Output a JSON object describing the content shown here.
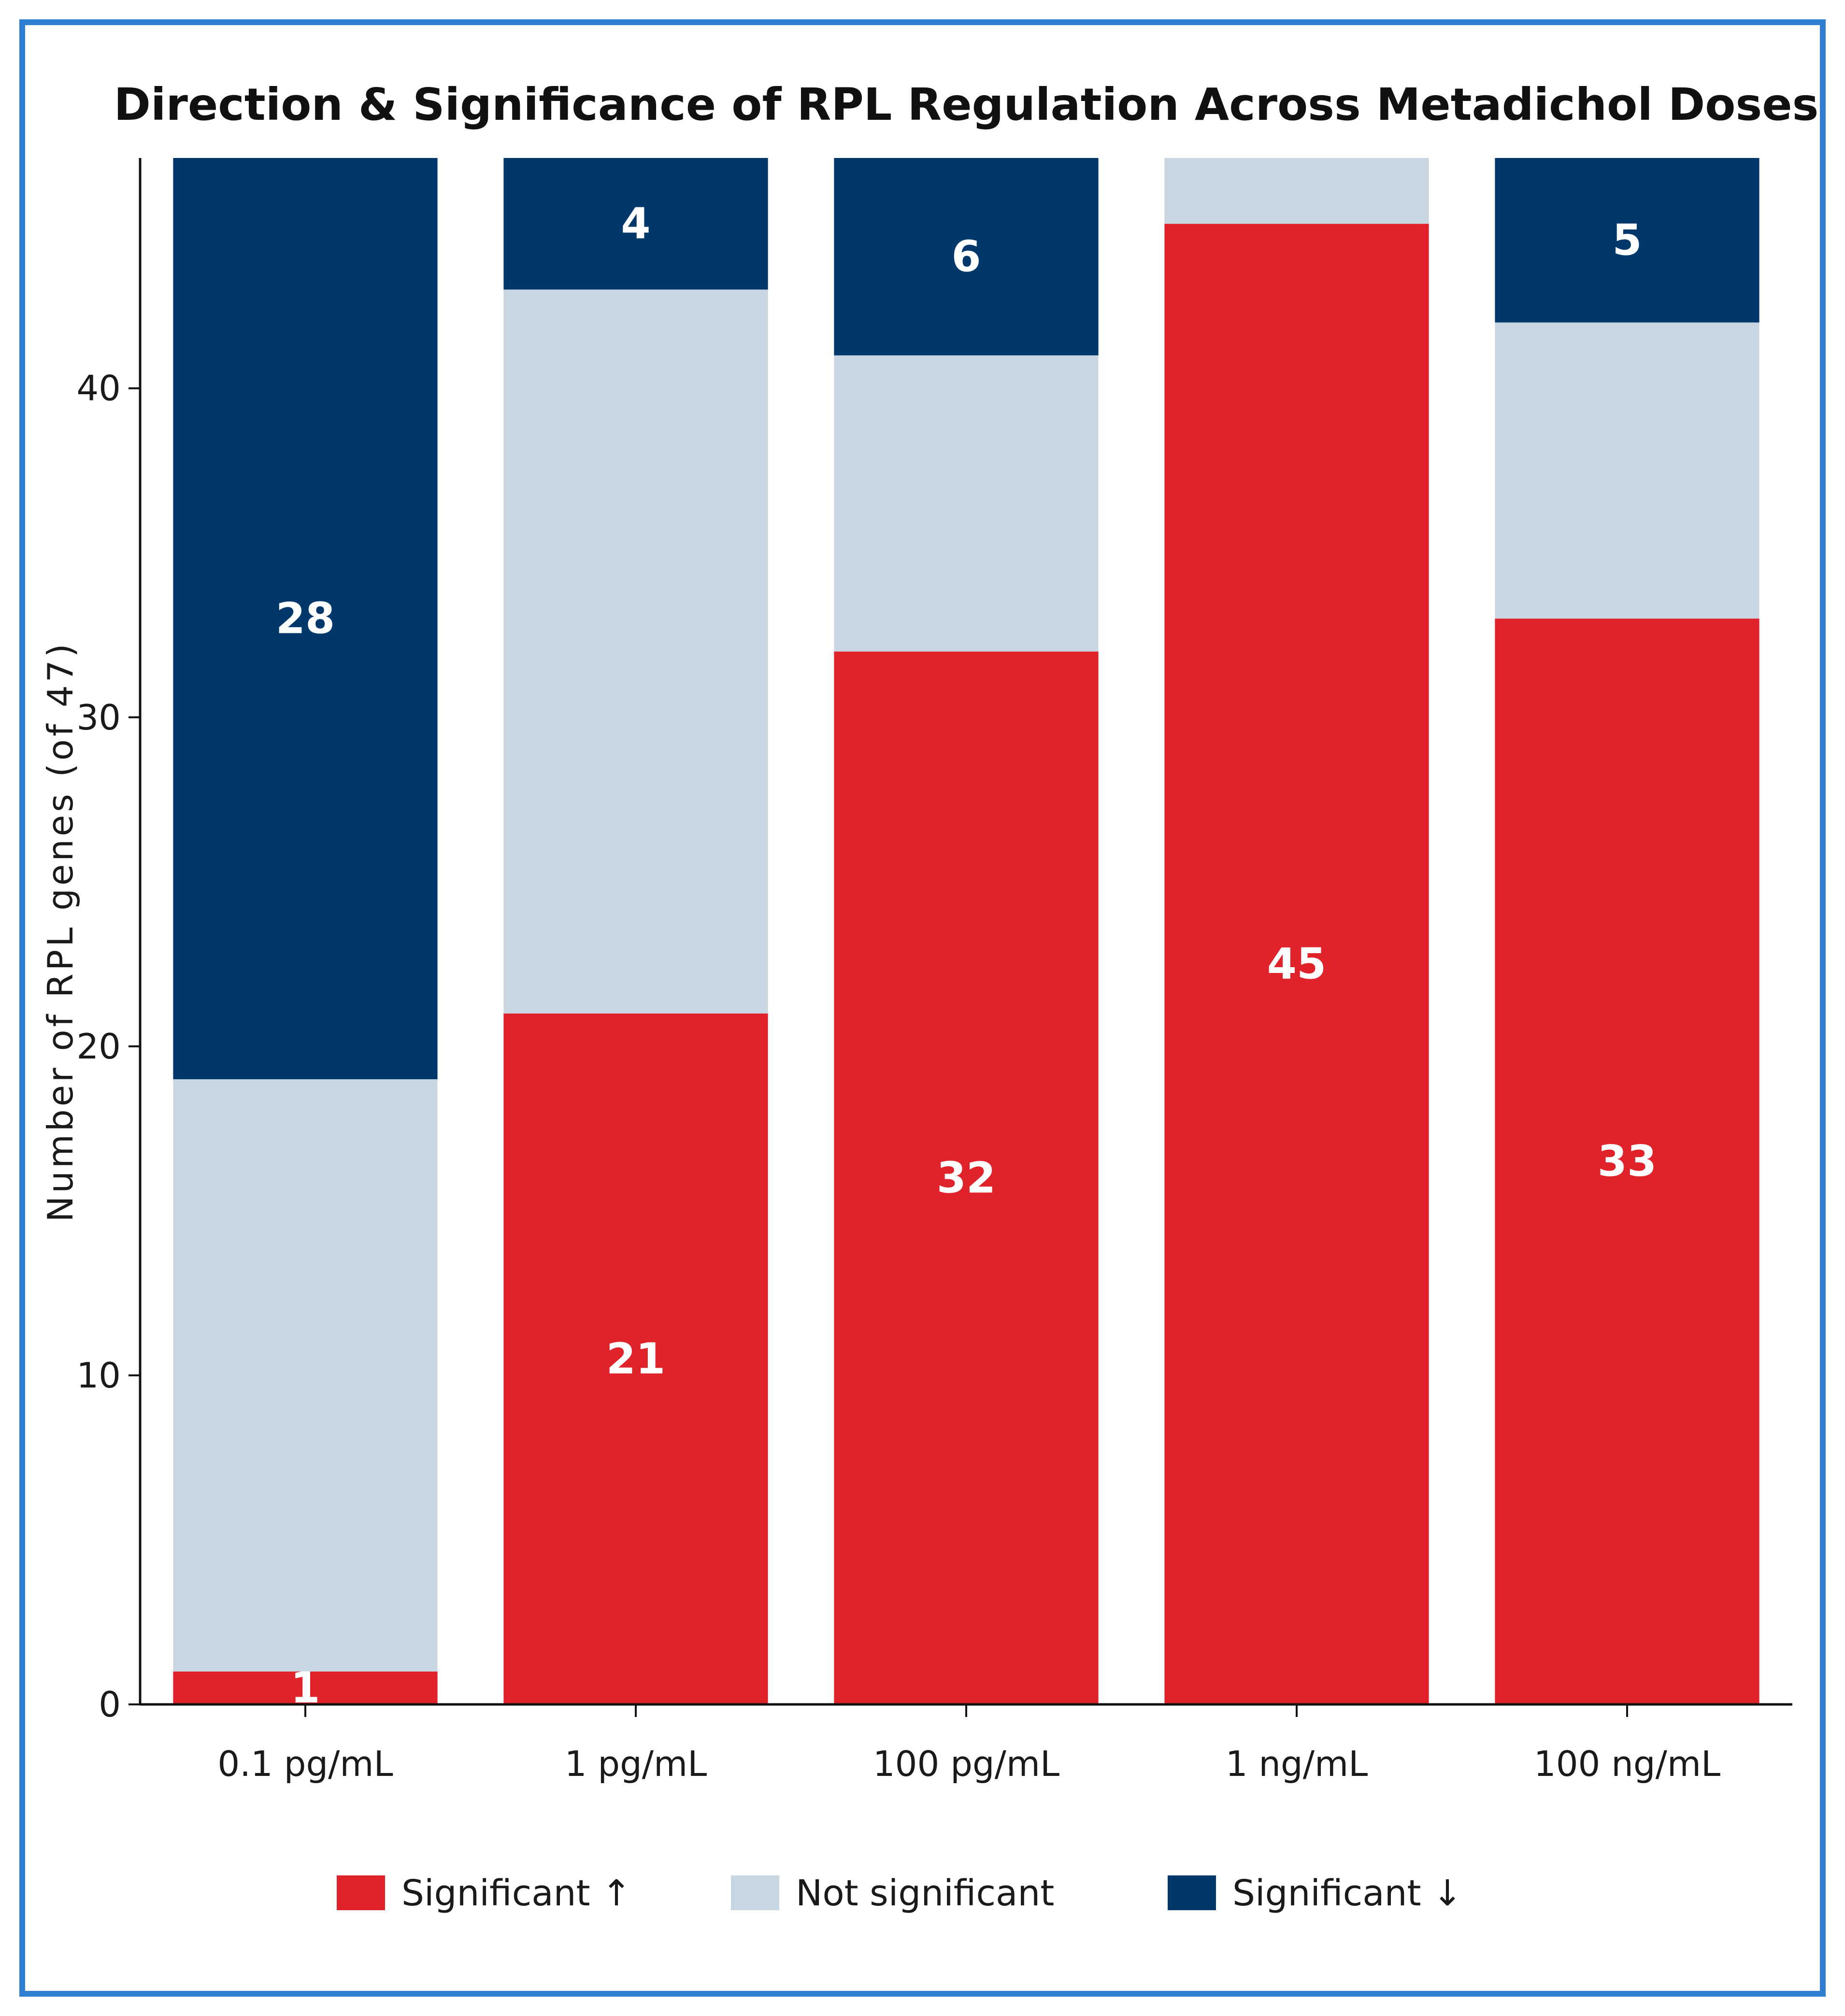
{
  "chart_data": {
    "type": "bar",
    "stacked": true,
    "title": "Direction & Significance of RPL Regulation Across Metadichol Doses",
    "xlabel": "",
    "ylabel": "Number of RPL genes (of 47)",
    "ylim": [
      0,
      47
    ],
    "yticks": [
      0,
      10,
      20,
      30,
      40
    ],
    "categories": [
      "0.1 pg/mL",
      "1 pg/mL",
      "100 pg/mL",
      "1 ng/mL",
      "100 ng/mL"
    ],
    "series": [
      {
        "name": "Significant ↑",
        "color": "#e0232a",
        "values": [
          1,
          21,
          32,
          45,
          33
        ],
        "labels": [
          "1",
          "21",
          "32",
          "45",
          "33"
        ]
      },
      {
        "name": "Not significant",
        "color": "#c8d6e1",
        "values": [
          18,
          22,
          9,
          2,
          9
        ],
        "labels": [
          "",
          "",
          "",
          "",
          ""
        ]
      },
      {
        "name": "Significant ↓",
        "color": "#00386b",
        "values": [
          28,
          4,
          6,
          0,
          5
        ],
        "labels": [
          "28",
          "4",
          "6",
          "",
          "5"
        ]
      }
    ],
    "grid": false,
    "legend_position": "bottom-center",
    "frame_color": "#2f7fd3"
  }
}
